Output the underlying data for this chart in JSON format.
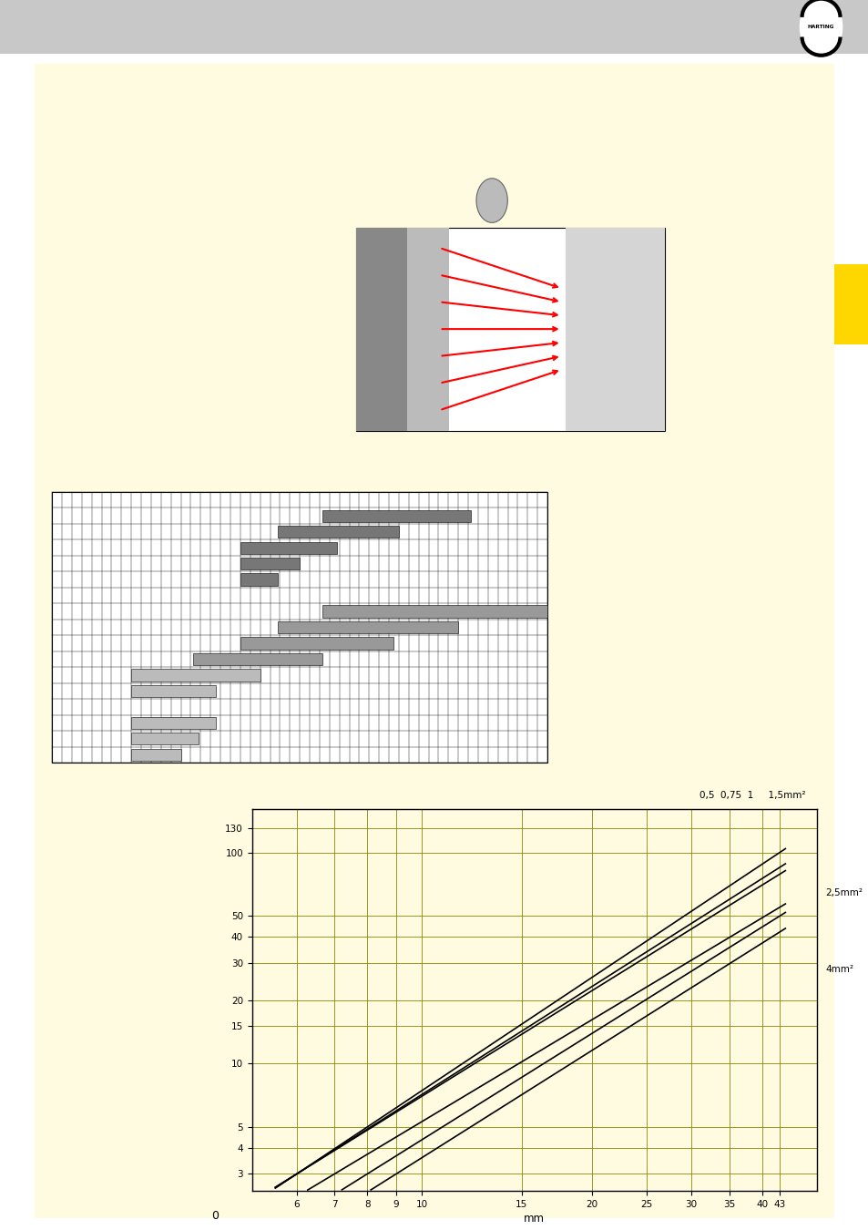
{
  "page_bg": "#FFFBE0",
  "header_bg": "#C8C8C8",
  "yellow_tab_color": "#FFD700",
  "bar_rows_dark": [
    [
      1,
      0.545,
      0.845
    ],
    [
      2,
      0.455,
      0.7
    ],
    [
      3,
      0.38,
      0.575
    ],
    [
      4,
      0.38,
      0.5
    ],
    [
      5,
      0.38,
      0.455
    ]
  ],
  "bar_rows_mid": [
    [
      7,
      0.545,
      1.0
    ],
    [
      8,
      0.455,
      0.82
    ],
    [
      9,
      0.38,
      0.69
    ],
    [
      10,
      0.285,
      0.545
    ]
  ],
  "bar_rows_light": [
    [
      11,
      0.16,
      0.42
    ],
    [
      12,
      0.16,
      0.33
    ],
    [
      14,
      0.16,
      0.33
    ],
    [
      15,
      0.16,
      0.295
    ],
    [
      16,
      0.16,
      0.26
    ]
  ],
  "yticks_log": [
    3,
    4,
    5,
    10,
    15,
    20,
    30,
    40,
    50,
    100,
    130
  ],
  "xticks_log": [
    6,
    7,
    8,
    9,
    10,
    15,
    20,
    25,
    30,
    35,
    40,
    43
  ],
  "line_label_top": "0,5  0,75  1     1,5mm²",
  "line_label_mid": "2,5mm²",
  "line_label_bot": "4mm²"
}
